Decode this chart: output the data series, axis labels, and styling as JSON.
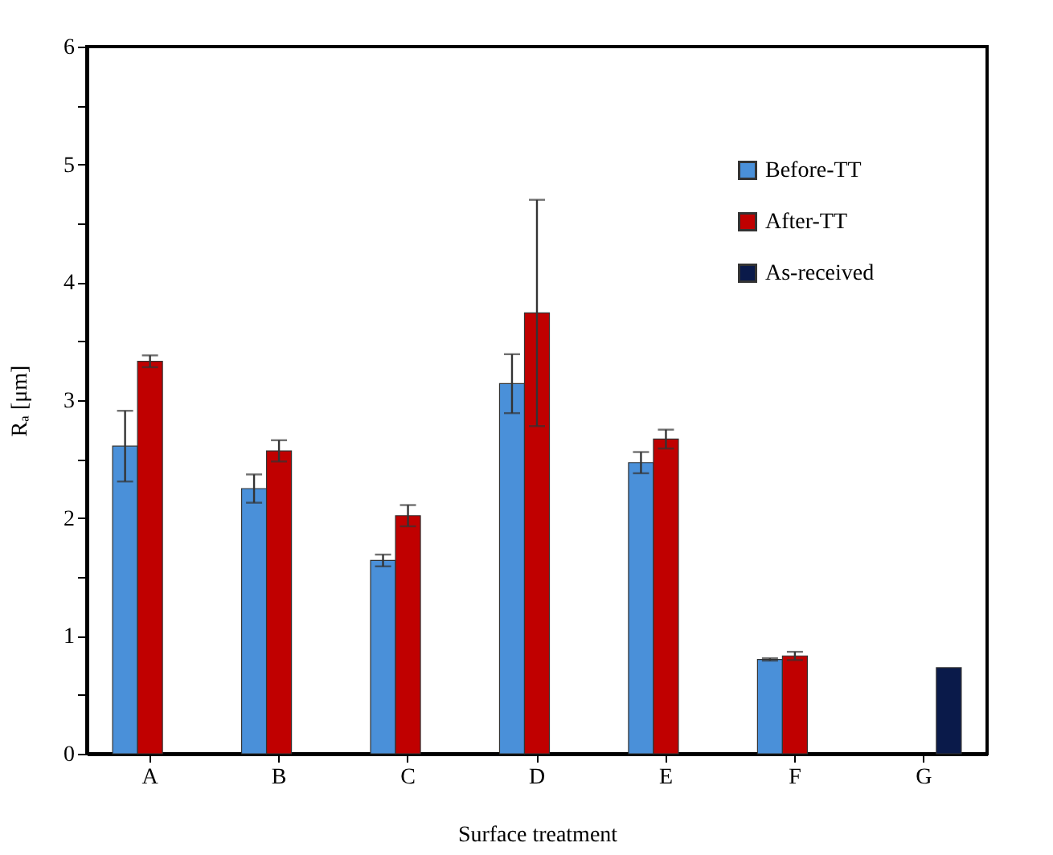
{
  "chart_data": {
    "type": "bar",
    "xlabel": "Surface treatment",
    "ylabel": "Rₐ [μm]",
    "categories": [
      "A",
      "B",
      "C",
      "D",
      "E",
      "F",
      "G"
    ],
    "series": [
      {
        "name": "Before-TT",
        "color": "#4a90d9",
        "values": [
          2.61,
          2.25,
          1.64,
          3.14,
          2.47,
          0.8,
          null
        ],
        "errors": [
          0.3,
          0.12,
          0.05,
          0.25,
          0.09,
          0.01,
          null
        ]
      },
      {
        "name": "After-TT",
        "color": "#c00000",
        "values": [
          3.33,
          2.57,
          2.02,
          3.74,
          2.67,
          0.83,
          null
        ],
        "errors": [
          0.05,
          0.09,
          0.09,
          0.96,
          0.08,
          0.035,
          null
        ]
      },
      {
        "name": "As-received",
        "color": "#0a1a4a",
        "values": [
          null,
          null,
          null,
          null,
          null,
          null,
          0.73
        ],
        "errors": [
          null,
          null,
          null,
          null,
          null,
          null,
          null
        ]
      }
    ],
    "ylim": [
      0,
      6
    ],
    "yticks": [
      0,
      {
        "value": 0.5,
        "label": null
      },
      1,
      {
        "value": 1.5,
        "label": null
      },
      2,
      {
        "value": 2.5,
        "label": null
      },
      3,
      {
        "value": 3.5,
        "label": null
      },
      4,
      {
        "value": 4.5,
        "label": null
      },
      5,
      {
        "value": 5.5,
        "label": null
      },
      6
    ],
    "grid": false,
    "legend": "top right"
  }
}
